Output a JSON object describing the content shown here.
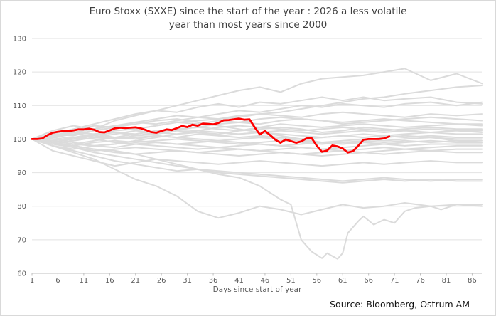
{
  "title": {
    "line1": "Euro Stoxx (SXXE) since the start of the year : 2026 a less volatile",
    "line2": "year than most years since 2000"
  },
  "source": "Source: Bloomberg, Ostrum AM",
  "chart_data": {
    "type": "line",
    "title": "Euro Stoxx (SXXE) since the start of the year : 2026 a less volatile year than most years since 2000",
    "xlabel": "Days since start of year",
    "ylabel": "",
    "xlim": [
      1,
      88
    ],
    "ylim": [
      60,
      130
    ],
    "x_ticks": [
      1,
      6,
      11,
      16,
      21,
      26,
      31,
      36,
      41,
      46,
      51,
      56,
      61,
      66,
      71,
      76,
      81,
      86
    ],
    "y_ticks": [
      60,
      70,
      80,
      90,
      100,
      110,
      120,
      130
    ],
    "grid": true,
    "legend": "none",
    "base_value": 100,
    "colors": {
      "highlight": "#fe0000",
      "history": "#dbdbdb",
      "grid": "#e2e2e2",
      "axis_line": "#bfbfbf",
      "axis_text": "#595959",
      "title_text": "#3f3f3f",
      "source_text": "#111111"
    },
    "highlight_series": {
      "name": "2026",
      "x_start": 1,
      "x_step": 1,
      "values": [
        100.0,
        100.0,
        100.2,
        101.2,
        101.9,
        102.2,
        102.4,
        102.4,
        102.6,
        102.9,
        102.9,
        103.1,
        102.8,
        102.1,
        102.0,
        102.6,
        103.2,
        103.4,
        103.3,
        103.4,
        103.5,
        103.2,
        102.7,
        102.1,
        101.9,
        102.4,
        102.9,
        102.7,
        103.3,
        103.9,
        103.6,
        104.3,
        104.0,
        104.6,
        104.5,
        104.4,
        104.8,
        105.6,
        105.7,
        105.9,
        106.1,
        105.8,
        105.9,
        103.5,
        101.4,
        102.4,
        101.2,
        99.8,
        98.9,
        99.9,
        99.4,
        98.9,
        99.3,
        100.2,
        100.3,
        98.0,
        96.2,
        96.6,
        98.1,
        97.8,
        97.2,
        96.0,
        96.4,
        98.0,
        99.8,
        100.0,
        100.0,
        100.0,
        100.2,
        100.8
      ]
    },
    "history_series": {
      "note": "Unlabeled grey background lines: one per year 2000-2025, indexed to 100 at day 1; values estimated from pixels",
      "anchor_days": [
        1,
        5,
        9,
        13,
        17,
        21,
        25,
        29,
        33,
        37,
        41,
        45,
        49,
        53,
        57,
        61,
        65,
        69,
        73,
        78,
        83,
        88
      ],
      "series": [
        {
          "name": "h01",
          "values": [
            100,
            101.5,
            103,
            104.5,
            106,
            107.5,
            108.5,
            110,
            111.5,
            113,
            114.5,
            115.5,
            114,
            116.5,
            118,
            118.5,
            119,
            120,
            121,
            117.5,
            119.5,
            116.5
          ]
        },
        {
          "name": "h02",
          "values": [
            100,
            99.5,
            100.5,
            101.5,
            102.5,
            103,
            104,
            105,
            105.5,
            106,
            106.5,
            107.5,
            108,
            109,
            110,
            111,
            112,
            112.5,
            113.5,
            114.5,
            115.5,
            116
          ]
        },
        {
          "name": "h03",
          "values": [
            100,
            102.5,
            104,
            103,
            105.5,
            107,
            108.5,
            108,
            109.5,
            110.5,
            109.5,
            111,
            110.5,
            111.5,
            112.5,
            111.5,
            112.5,
            111.5,
            112,
            112.5,
            111,
            110.5
          ]
        },
        {
          "name": "h04",
          "values": [
            100,
            101,
            102.5,
            104,
            103.5,
            105,
            106,
            107,
            106.5,
            107.5,
            108.5,
            108,
            109,
            110,
            109.5,
            110.5,
            110,
            109.5,
            110.5,
            111,
            110,
            111
          ]
        },
        {
          "name": "h05",
          "values": [
            100,
            100.5,
            102,
            103,
            104,
            105,
            104.5,
            105.5,
            106.5,
            106,
            107,
            107.5,
            107,
            106.5,
            107.5,
            108,
            107.5,
            107,
            106.5,
            107.5,
            107,
            107.5
          ]
        },
        {
          "name": "h06",
          "values": [
            100,
            101.5,
            101,
            102.5,
            103.5,
            103,
            104,
            105,
            104.5,
            105.5,
            105,
            106,
            106.5,
            106,
            105.5,
            105,
            105.5,
            106,
            105.5,
            105,
            104.5,
            104.5
          ]
        },
        {
          "name": "h07",
          "values": [
            100,
            99,
            100,
            101,
            102,
            101.5,
            102.5,
            103,
            102.5,
            103.5,
            104,
            103.5,
            104.5,
            104,
            103.5,
            104,
            104.5,
            104,
            103.5,
            104,
            104.5,
            104
          ]
        },
        {
          "name": "h08",
          "values": [
            100,
            100.5,
            99.5,
            100.5,
            101.5,
            102.5,
            102,
            103,
            103.5,
            103,
            102.5,
            103.5,
            103,
            102.5,
            103,
            103.5,
            103,
            102.5,
            103,
            103.5,
            103,
            103
          ]
        },
        {
          "name": "h09",
          "values": [
            100,
            98.5,
            99.5,
            100.5,
            100,
            101,
            102,
            101.5,
            102.5,
            102,
            101.5,
            102,
            102.5,
            102,
            101.5,
            102,
            102.5,
            102,
            102.5,
            102,
            102.5,
            102.5
          ]
        },
        {
          "name": "h10",
          "values": [
            100,
            101,
            100,
            101.5,
            102,
            101,
            101.5,
            102.5,
            102,
            101,
            101.5,
            102,
            101.5,
            101,
            100.5,
            101,
            101.5,
            101,
            101.5,
            102,
            101.5,
            101.5
          ]
        },
        {
          "name": "h11",
          "values": [
            100,
            99.5,
            98.5,
            99.5,
            100.5,
            100,
            101,
            100.5,
            101.5,
            101,
            100.5,
            101,
            100.5,
            100,
            100.5,
            101,
            100.5,
            101,
            100.5,
            101,
            100.5,
            100.5
          ]
        },
        {
          "name": "h12",
          "values": [
            100,
            100.5,
            101.5,
            101,
            100,
            100.5,
            101,
            100.5,
            100,
            99.5,
            100,
            100.5,
            100,
            99.5,
            99,
            99.5,
            100,
            99.5,
            100,
            100.5,
            100,
            100
          ]
        },
        {
          "name": "h13",
          "values": [
            100,
            99,
            98,
            99,
            99.5,
            99,
            99.5,
            100,
            99.5,
            99,
            98.5,
            99,
            99.5,
            99,
            98.5,
            99,
            99.5,
            99,
            99.5,
            99,
            99.5,
            99.5
          ]
        },
        {
          "name": "h14",
          "values": [
            100,
            98,
            97,
            98,
            98.5,
            99.5,
            99,
            98.5,
            99,
            99.5,
            99,
            98.5,
            98,
            98.5,
            99,
            98.5,
            99,
            98.5,
            99,
            99.5,
            99,
            99
          ]
        },
        {
          "name": "h15",
          "values": [
            100,
            99.5,
            100.5,
            100,
            99,
            98.5,
            99,
            98.5,
            98,
            97.5,
            98,
            98.5,
            98,
            97.5,
            97,
            97.5,
            98,
            98.5,
            98,
            98.5,
            98.5,
            98.5
          ]
        },
        {
          "name": "h16",
          "values": [
            100,
            100,
            99,
            98,
            97.5,
            98.5,
            98,
            97.5,
            97,
            97.5,
            97,
            96.5,
            97,
            97.5,
            97,
            96.5,
            97,
            97.5,
            97,
            97.5,
            98,
            98
          ]
        },
        {
          "name": "h17",
          "values": [
            100,
            98.5,
            97.5,
            96.5,
            97,
            97.5,
            97,
            96.5,
            96,
            96.5,
            97,
            96.5,
            96,
            95.5,
            96,
            96.5,
            96,
            96.5,
            97,
            96.5,
            97,
            97
          ]
        },
        {
          "name": "h18",
          "values": [
            100,
            99,
            98,
            97,
            96,
            95.5,
            96,
            96.5,
            96,
            95.5,
            95,
            95.5,
            96,
            95.5,
            95,
            95.5,
            96,
            95.5,
            96,
            96.5,
            96,
            96
          ]
        },
        {
          "name": "h19",
          "values": [
            100,
            96.5,
            95,
            93.5,
            92,
            93,
            94,
            93.5,
            93,
            92.5,
            93,
            93.5,
            93,
            92.5,
            92,
            92.5,
            93,
            92.5,
            93,
            93.5,
            93,
            93
          ]
        },
        {
          "name": "h20",
          "values": [
            100,
            99,
            97.5,
            96,
            95,
            94,
            93,
            92,
            91,
            90.5,
            90,
            89.5,
            89,
            88.5,
            88,
            87.5,
            88,
            88.5,
            88,
            87.5,
            88,
            88
          ]
        },
        {
          "name": "h21",
          "values": [
            100,
            98,
            96.5,
            95,
            93.5,
            92.5,
            91.5,
            90.5,
            91,
            90,
            89.5,
            89,
            88.5,
            88,
            87.5,
            87,
            87.5,
            88,
            87.5,
            88,
            87.5,
            87.5
          ]
        },
        {
          "name": "h22",
          "values": [
            100,
            98,
            96,
            94,
            91,
            88,
            86,
            83,
            78.5,
            76.5,
            78,
            80,
            79,
            77.5,
            79,
            80.5,
            79.5,
            80,
            81,
            80,
            80.5,
            80.5
          ]
        },
        {
          "name": "h23",
          "x": [
            1,
            5,
            9,
            13,
            17,
            21,
            25,
            29,
            33,
            37,
            41,
            45,
            49,
            51,
            53,
            55,
            56,
            57,
            58,
            60,
            61,
            62,
            64,
            65,
            67,
            69,
            71,
            73,
            75,
            78,
            80,
            83,
            88
          ],
          "values": [
            100,
            99,
            98,
            97,
            96.5,
            95.5,
            94,
            92.5,
            91,
            89.5,
            88.5,
            86,
            82,
            80.5,
            70,
            66.5,
            65.5,
            64.5,
            66,
            64.3,
            66,
            72,
            75.5,
            77,
            74.5,
            76,
            75,
            78.5,
            79.5,
            80,
            79,
            80.5,
            80
          ]
        },
        {
          "name": "h24",
          "values": [
            100,
            101,
            102,
            101.5,
            100.5,
            101.5,
            102.5,
            103,
            103.5,
            104.5,
            105,
            104.5,
            105.5,
            106,
            105.5,
            104.5,
            105,
            105.5,
            106,
            106.5,
            106,
            105.5
          ]
        },
        {
          "name": "h25",
          "values": [
            100,
            99.5,
            98.5,
            98,
            98.5,
            99.5,
            100.5,
            101.5,
            102,
            101.5,
            102.5,
            103,
            103.5,
            103,
            102,
            102.5,
            103.5,
            103,
            102.5,
            103,
            102.5,
            102
          ]
        },
        {
          "name": "h26",
          "values": [
            100,
            100.5,
            101.5,
            102.5,
            103.5,
            104.5,
            105.5,
            106,
            105,
            104,
            103,
            102,
            101,
            100,
            99,
            98.5,
            99.5,
            100.5,
            101,
            100.5,
            99.5,
            99
          ]
        }
      ]
    }
  }
}
